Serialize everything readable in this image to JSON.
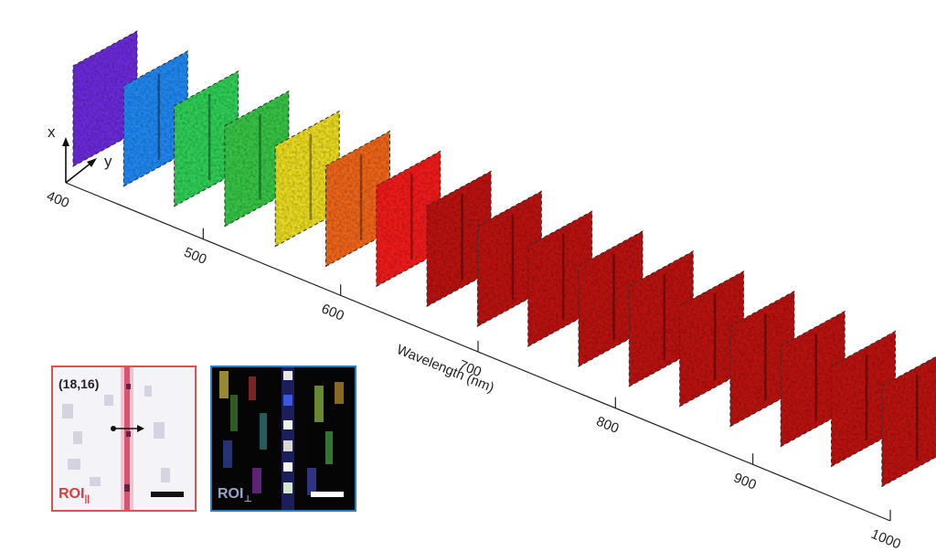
{
  "axis": {
    "x_label": "x",
    "y_label": "y",
    "title": "Wavelength (nm)",
    "ticks": [
      "400",
      "500",
      "600",
      "700",
      "800",
      "900",
      "1000"
    ]
  },
  "frames": {
    "colors": [
      "#6a2ad8",
      "#1f86ee",
      "#2ecc55",
      "#36c244",
      "#e8d820",
      "#ec6418",
      "#ee1a1a",
      "#b8120f",
      "#b8120f",
      "#b8120f",
      "#b8120f",
      "#b8120f",
      "#b8120f",
      "#b8120f",
      "#b8120f",
      "#b8120f",
      "#b8120f"
    ]
  },
  "insets": {
    "parallel": {
      "coord": "(18,16)",
      "label": "ROI",
      "subscript": "||",
      "border_color": "#d9534f"
    },
    "perpendicular": {
      "label": "ROI",
      "subscript": "⊥",
      "border_color": "#2a7fc0"
    }
  }
}
